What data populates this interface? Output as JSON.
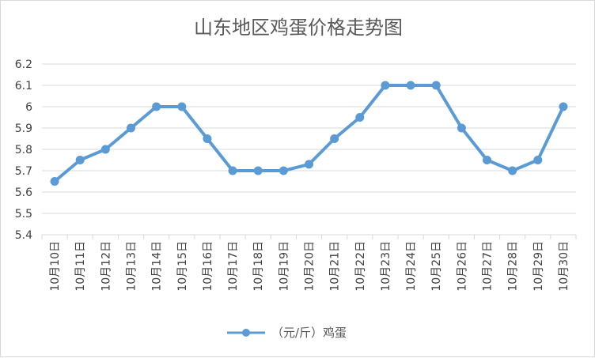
{
  "chart_data": {
    "type": "line",
    "title": "山东地区鸡蛋价格走势图",
    "categories": [
      "10月10日",
      "10月11日",
      "10月12日",
      "10月13日",
      "10月14日",
      "10月15日",
      "10月16日",
      "10月17日",
      "10月18日",
      "10月19日",
      "10月20日",
      "10月21日",
      "10月22日",
      "10月23日",
      "10月24日",
      "10月25日",
      "10月26日",
      "10月27日",
      "10月28日",
      "10月29日",
      "10月30日"
    ],
    "series": [
      {
        "name": "（元/斤）鸡蛋",
        "values": [
          5.65,
          5.75,
          5.8,
          5.9,
          6.0,
          6.0,
          5.85,
          5.7,
          5.7,
          5.7,
          5.73,
          5.85,
          5.95,
          6.1,
          6.1,
          6.1,
          5.9,
          5.75,
          5.7,
          5.75,
          6.0
        ],
        "color": "#5b9bd5"
      }
    ],
    "yticks": [
      "5.4",
      "5.5",
      "5.6",
      "5.7",
      "5.8",
      "5.9",
      "6",
      "6.1",
      "6.2"
    ],
    "ylim": [
      5.4,
      6.2
    ],
    "grid": true,
    "legend": "bottom",
    "colors": {
      "grid": "#d9d9d9",
      "text": "#404040"
    }
  }
}
